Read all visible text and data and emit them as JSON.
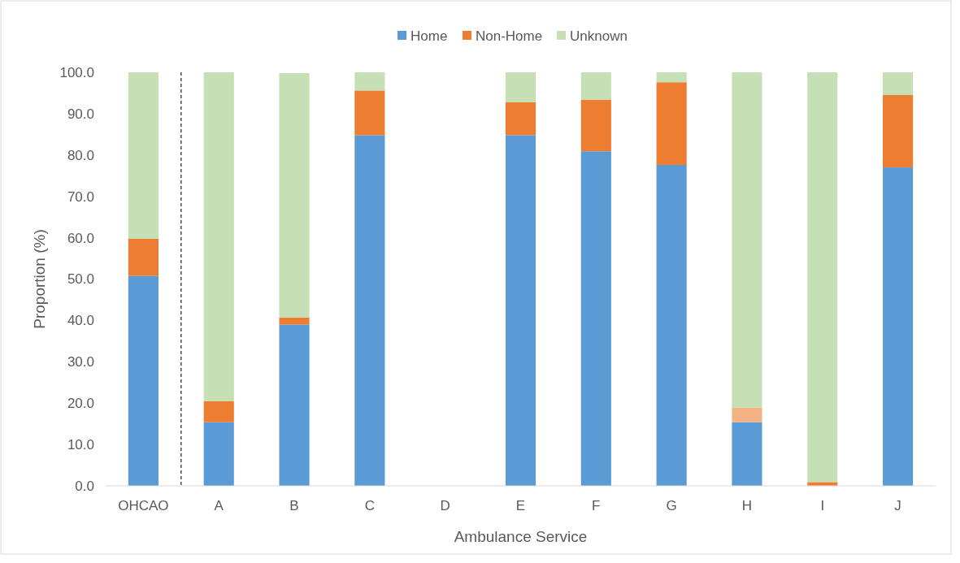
{
  "chart_data": {
    "type": "bar",
    "stacked": true,
    "xlabel": "Ambulance Service",
    "ylabel": "Proportion (%)",
    "categories": [
      "OHCAO",
      "A",
      "B",
      "C",
      "D",
      "E",
      "F",
      "G",
      "H",
      "I",
      "J"
    ],
    "series": [
      {
        "name": "Home",
        "color": "#5b9bd5",
        "values": [
          50.8,
          15.4,
          39.0,
          84.8,
          0,
          84.8,
          80.9,
          77.6,
          15.4,
          0,
          77.0
        ]
      },
      {
        "name": "Non-Home",
        "color": "#ed7d31",
        "colors": [
          "#ed7d31",
          "#ed7d31",
          "#ed7d31",
          "#ed7d31",
          "#ed7d31",
          "#ed7d31",
          "#ed7d31",
          "#ed7d31",
          "#f4b183",
          "#ed7d31",
          "#ed7d31"
        ],
        "values": [
          9.0,
          5.1,
          1.7,
          10.8,
          0,
          8.0,
          12.5,
          20.0,
          3.5,
          0.9,
          17.5
        ]
      },
      {
        "name": "Unknown",
        "color": "#c5e0b4",
        "values": [
          40.2,
          79.5,
          59.1,
          4.4,
          0,
          7.2,
          6.6,
          2.4,
          81.1,
          99.1,
          5.5
        ]
      }
    ],
    "ylim": [
      0,
      100
    ],
    "yticks": [
      {
        "value": 0,
        "label": "0.0"
      },
      {
        "value": 10,
        "label": "10.0"
      },
      {
        "value": 20,
        "label": "20.0"
      },
      {
        "value": 30,
        "label": "30.0"
      },
      {
        "value": 40,
        "label": "40.0"
      },
      {
        "value": 50,
        "label": "50.0"
      },
      {
        "value": 60,
        "label": "60.0"
      },
      {
        "value": 70,
        "label": "70.0"
      },
      {
        "value": 80,
        "label": "80.0"
      },
      {
        "value": 90,
        "label": "90.0"
      },
      {
        "value": 100,
        "label": "100.0"
      }
    ],
    "grid": false,
    "legend": "top"
  }
}
